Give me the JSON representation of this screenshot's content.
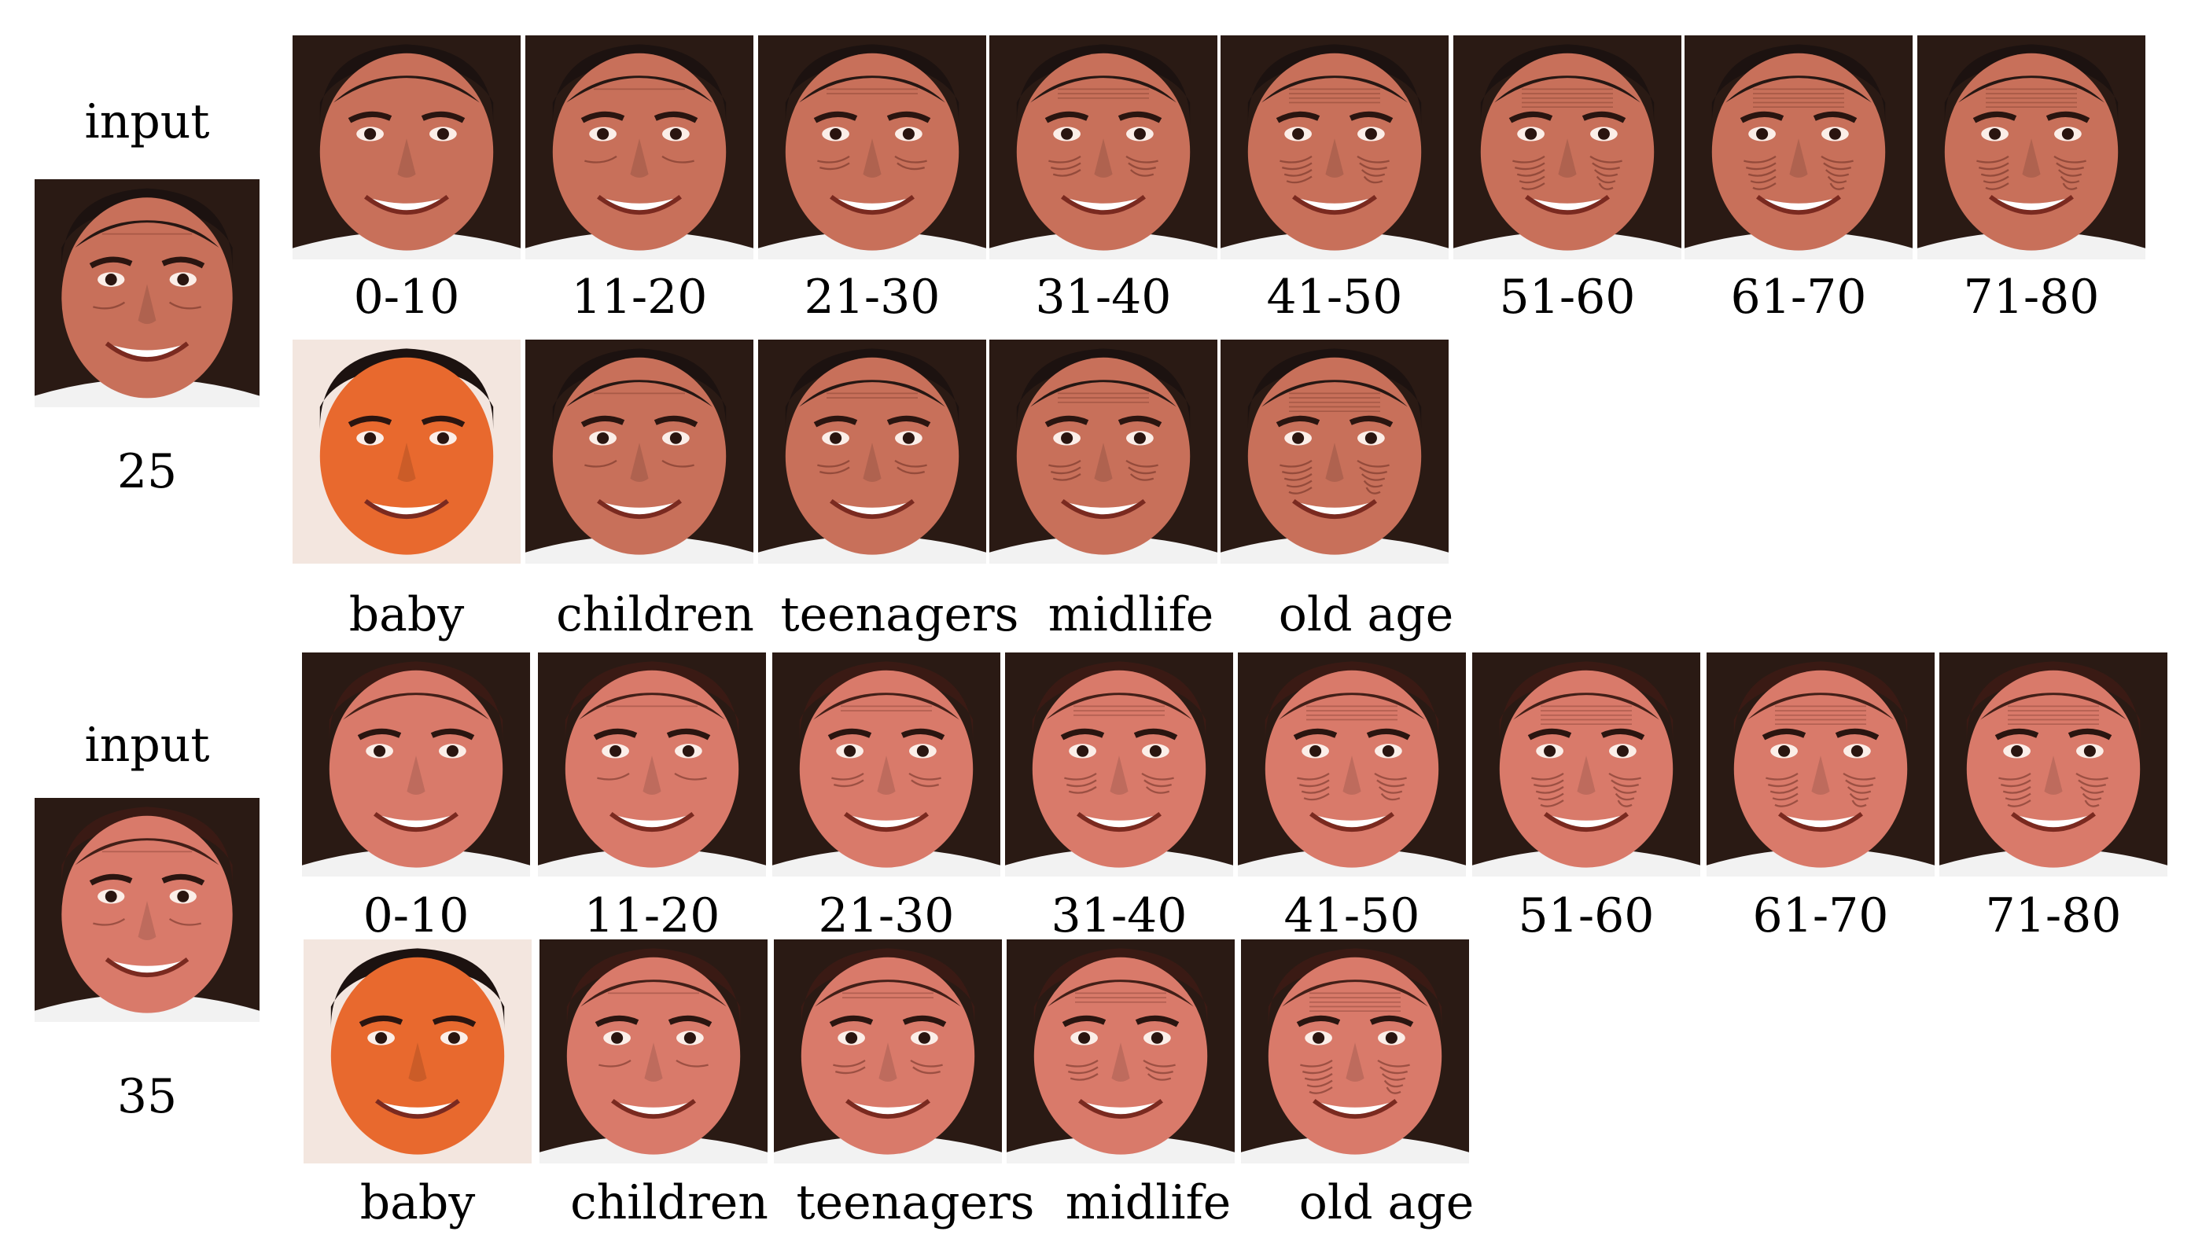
{
  "examples": [
    {
      "input_label": "input",
      "input_age": "25",
      "age_groups": [
        "0-10",
        "11-20",
        "21-30",
        "31-40",
        "41-50",
        "51-60",
        "61-70",
        "71-80"
      ],
      "stages": [
        "baby",
        "children",
        "teenagers",
        "midlife",
        "old age"
      ]
    },
    {
      "input_label": "input",
      "input_age": "35",
      "age_groups": [
        "0-10",
        "11-20",
        "21-30",
        "31-40",
        "41-50",
        "51-60",
        "61-70",
        "71-80"
      ],
      "stages": [
        "baby",
        "children",
        "teenagers",
        "midlife",
        "old age"
      ]
    }
  ],
  "palette": {
    "background_dark": "#2a1a14",
    "skin_man": "#c8705a",
    "skin_woman": "#d97a6a",
    "skin_baby": "#e8692e",
    "hair_dark": "#1c1210",
    "hair_woman": "#3a1a14",
    "shirt": "#f2f2f2"
  }
}
